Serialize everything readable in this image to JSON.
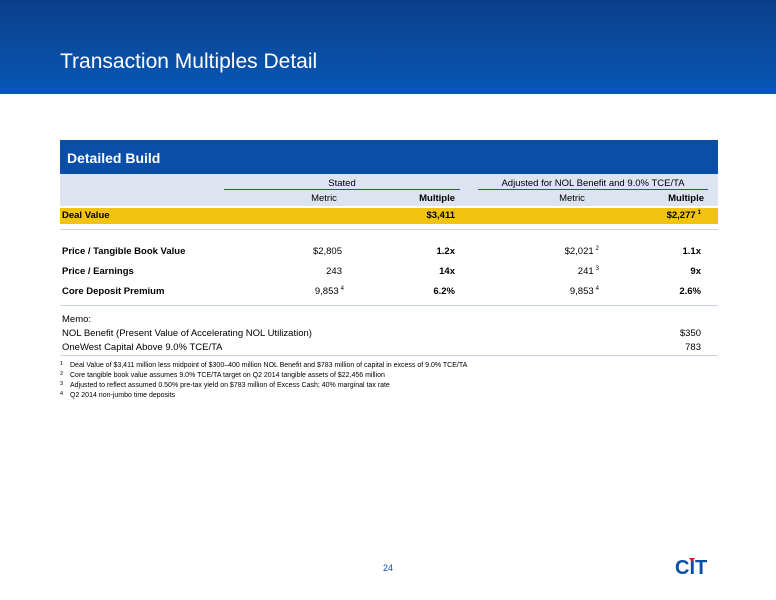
{
  "title": "Transaction Multiples Detail",
  "panel": {
    "heading": "Detailed Build",
    "group_stated": "Stated",
    "group_adjusted": "Adjusted for NOL Benefit and 9.0% TCE/TA",
    "col_metric_1": "Metric",
    "col_multiple_1": "Multiple",
    "col_metric_2": "Metric",
    "col_multiple_2": "Multiple"
  },
  "deal": {
    "label": "Deal Value",
    "stated_multiple": "$3,411",
    "adjusted_multiple": "$2,277",
    "adjusted_note": "1"
  },
  "rows": [
    {
      "label": "Price / Tangible Book Value",
      "stated_metric": "$2,805",
      "stated_note": "",
      "stated_multiple": "1.2x",
      "adj_metric": "$2,021",
      "adj_note": "2",
      "adj_multiple": "1.1x"
    },
    {
      "label": "Price / Earnings",
      "stated_metric": "243",
      "stated_note": "",
      "stated_multiple": "14x",
      "adj_metric": "241",
      "adj_note": "3",
      "adj_multiple": "9x"
    },
    {
      "label": "Core Deposit Premium",
      "stated_metric": "9,853",
      "stated_note": "4",
      "stated_multiple": "6.2%",
      "adj_metric": "9,853",
      "adj_note": "4",
      "adj_multiple": "2.6%"
    }
  ],
  "memo": {
    "heading": "Memo:",
    "items": [
      {
        "label": "NOL Benefit (Present Value of Accelerating NOL Utilization)",
        "value": "$350"
      },
      {
        "label": "OneWest Capital Above 9.0% TCE/TA",
        "value": "783"
      }
    ]
  },
  "footnotes": [
    {
      "num": "1",
      "text": "Deal Value of $3,411 million less midpoint of $300–400 million NOL Benefit and $783 million of capital in excess of 9.0% TCE/TA"
    },
    {
      "num": "2",
      "text": "Core tangible book value assumes 9.0% TCE/TA target on Q2 2014 tangible assets of $22,456 million"
    },
    {
      "num": "3",
      "text": "Adjusted to reflect assumed 0.50% pre-tax yield on $783 million of Excess Cash; 40% marginal tax rate"
    },
    {
      "num": "4",
      "text": "Q2 2014 non-jumbo time deposits"
    }
  ],
  "page_number": "24",
  "logo_text": "CIT",
  "colors": {
    "header": "#0a4a9c",
    "panel_head": "#0b4ea8",
    "band": "#dde3ef",
    "deal_highlight": "#f2c40f"
  }
}
